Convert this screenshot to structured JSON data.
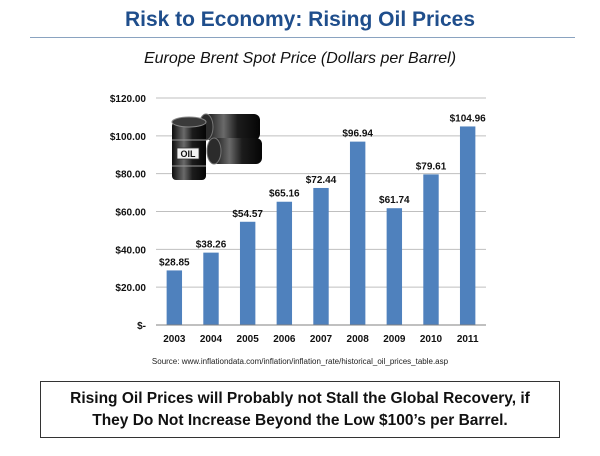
{
  "slide": {
    "title": "Risk to Economy: Rising Oil Prices",
    "source": "Source:  www.inflationdata.com/inflation/inflation_rate/historical_oil_prices_table.asp",
    "callout": "Rising Oil Prices will Probably not Stall the Global Recovery, if They Do Not Increase Beyond the Low $100’s per Barrel.",
    "image": {
      "icon": "oil-barrels-icon",
      "label": "OIL"
    }
  },
  "chart_data": {
    "type": "bar",
    "title": "Europe Brent Spot Price (Dollars per Barrel)",
    "categories": [
      "2003",
      "2004",
      "2005",
      "2006",
      "2007",
      "2008",
      "2009",
      "2010",
      "2011"
    ],
    "values": [
      28.85,
      38.26,
      54.57,
      65.16,
      72.44,
      96.94,
      61.74,
      79.61,
      104.96
    ],
    "data_labels": [
      "$28.85",
      "$38.26",
      "$54.57",
      "$65.16",
      "$72.44",
      "$96.94",
      "$61.74",
      "$79.61",
      "$104.96"
    ],
    "ylim": [
      0,
      120
    ],
    "yticks": [
      0,
      20,
      40,
      60,
      80,
      100,
      120
    ],
    "ytick_labels": [
      "$-",
      "$20.00",
      "$40.00",
      "$60.00",
      "$80.00",
      "$100.00",
      "$120.00"
    ],
    "grid": true,
    "legend": "none",
    "bar_color": "#4f81bd",
    "grid_color": "#bfbfbf"
  }
}
